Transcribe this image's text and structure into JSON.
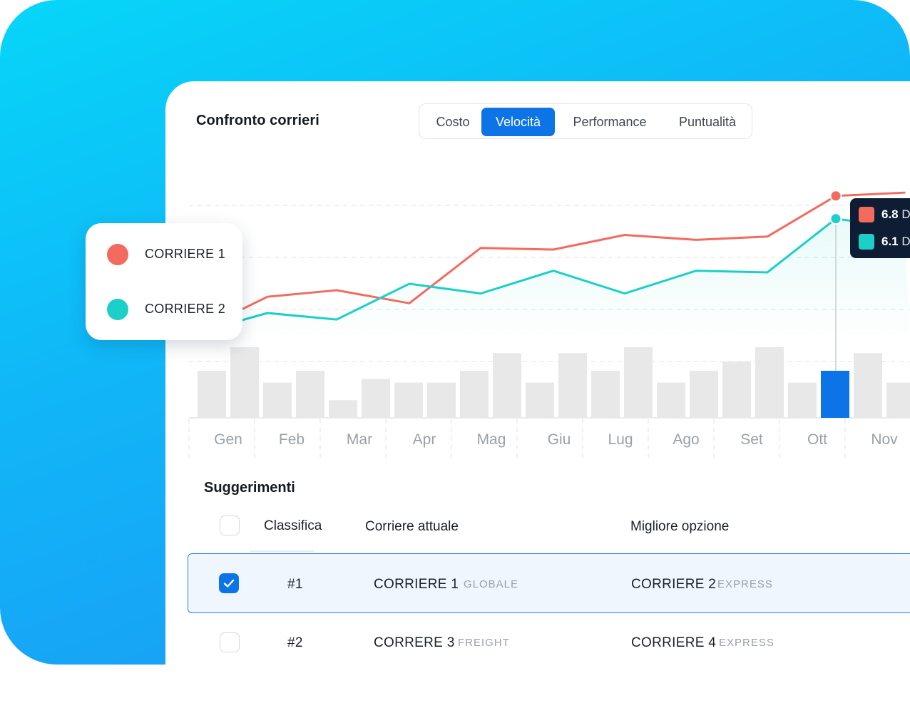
{
  "title": "Confronto corrieri",
  "tabs": [
    {
      "label": "Costo",
      "active": false
    },
    {
      "label": "Velocità",
      "active": true
    },
    {
      "label": "Performance",
      "active": false
    },
    {
      "label": "Puntualità",
      "active": false
    }
  ],
  "legend": [
    {
      "label": "CORRIERE 1",
      "color": "#f26b5e"
    },
    {
      "label": "CORRIERE 2",
      "color": "#1ccfc9"
    }
  ],
  "tooltip": {
    "month": "Ott",
    "rows": [
      {
        "value": "6.8",
        "unit": "D",
        "color": "#f26b5e"
      },
      {
        "value": "6.1",
        "unit": "D",
        "color": "#1ccfc9"
      }
    ]
  },
  "chart_data": {
    "type": "line",
    "categories": [
      "Gen",
      "Feb",
      "Mar",
      "Apr",
      "Mag",
      "Giu",
      "Lug",
      "Ago",
      "Set",
      "Ott",
      "Nov"
    ],
    "series": [
      {
        "name": "CORRIERE 1",
        "color": "#f26b5e",
        "values": [
          3.0,
          3.7,
          3.9,
          3.5,
          5.2,
          5.15,
          5.6,
          5.45,
          5.55,
          6.8,
          6.9
        ]
      },
      {
        "name": "CORRIERE 2",
        "color": "#1ccfc9",
        "values": [
          2.8,
          3.2,
          3.0,
          4.1,
          3.8,
          4.5,
          3.8,
          4.5,
          4.45,
          6.1,
          5.8
        ]
      }
    ],
    "ylim": [
      0,
      8
    ],
    "grid": true,
    "bars": {
      "values": [
        4,
        6,
        3,
        4,
        1.5,
        3.3,
        3,
        3,
        4,
        5.5,
        3,
        5.5,
        4,
        6,
        3,
        4,
        4.8,
        6,
        3,
        4,
        5.5,
        3
      ],
      "highlight_index": 19,
      "color": "#e8e8e8",
      "highlight_color": "#0d74e8"
    }
  },
  "suggestions": {
    "title": "Suggerimenti",
    "columns": {
      "rank": "Classifica",
      "current": "Corriere attuale",
      "best": "Migliore opzione"
    },
    "rows": [
      {
        "checked": true,
        "rank": "#1",
        "current": "CORRIERE 1",
        "current_tag": "GLOBALE",
        "best": "CORRIERE 2",
        "best_tag": "EXPRESS"
      },
      {
        "checked": false,
        "rank": "#2",
        "current": "CORRERE 3",
        "current_tag": "FREIGHT",
        "best": "CORRIERE 4",
        "best_tag": "EXPRESS"
      }
    ]
  }
}
